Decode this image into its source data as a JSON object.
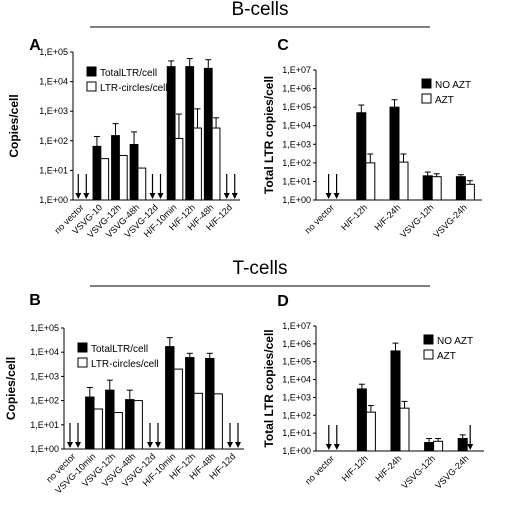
{
  "section_titles": {
    "top": "B-cells",
    "bottom": "T-cells"
  },
  "chart_data": [
    {
      "panel": "A",
      "type": "bar",
      "ylabel": "Copies/cell",
      "yscale": "log",
      "ylim": [
        1,
        100000
      ],
      "yticks": [
        "1,E+00",
        "1,E+01",
        "1,E+02",
        "1,E+03",
        "1,E+04",
        "1,E+05"
      ],
      "legend_position": "top-left",
      "categories": [
        "no vector",
        "VSVG-10",
        "VSVG-12h",
        "VSVG-48h",
        "VSVG-12d",
        "H/F-10min",
        "H/F-12h",
        "H/F-48h",
        "H/F-12d"
      ],
      "series": [
        {
          "name": "TotalLTR/cell",
          "color": "#000000",
          "values": [
            null,
            65,
            150,
            75,
            null,
            32000,
            32000,
            28000,
            null
          ],
          "error_upper": [
            null,
            140,
            380,
            200,
            null,
            50000,
            60000,
            55000,
            null
          ]
        },
        {
          "name": "LTR-circles/cell",
          "color": "#ffffff",
          "values": [
            null,
            25,
            32,
            12,
            null,
            120,
            270,
            270,
            null
          ],
          "error_upper": [
            null,
            null,
            null,
            null,
            null,
            800,
            1200,
            600,
            null
          ]
        }
      ],
      "undetectable_markers": [
        {
          "category": "no vector",
          "count": 2
        },
        {
          "category": "VSVG-12d",
          "count": 2
        },
        {
          "category": "H/F-12d",
          "count": 2
        }
      ]
    },
    {
      "panel": "C",
      "type": "bar",
      "ylabel": "Total LTR copies/cell",
      "yscale": "log",
      "ylim": [
        1,
        10000000
      ],
      "yticks": [
        "1,E+00",
        "1,E+01",
        "1,E+02",
        "1,E+03",
        "1,E+04",
        "1,E+05",
        "1,E+06",
        "1,E+07"
      ],
      "legend_position": "top-right",
      "categories": [
        "no vector",
        "H/F-12h",
        "H/F-24h",
        "VSVG-12h",
        "VSVG-24h"
      ],
      "series": [
        {
          "name": "NO AZT",
          "color": "#000000",
          "values": [
            null,
            50000,
            100000,
            20,
            18
          ],
          "error_upper": [
            null,
            130000,
            250000,
            32,
            23
          ]
        },
        {
          "name": "AZT",
          "color": "#ffffff",
          "values": [
            null,
            100,
            110,
            18,
            7
          ],
          "error_upper": [
            null,
            300,
            300,
            26,
            11
          ]
        }
      ],
      "undetectable_markers": [
        {
          "category": "no vector",
          "count": 2
        }
      ]
    },
    {
      "panel": "B",
      "type": "bar",
      "ylabel": "Copies/cell",
      "yscale": "log",
      "ylim": [
        1,
        100000
      ],
      "yticks": [
        "1,E+00",
        "1,E+01",
        "1,E+02",
        "1,E+03",
        "1,E+04",
        "1,E+05"
      ],
      "legend_position": "top-left",
      "categories": [
        "no vector",
        "VSVG-10min",
        "VSVG-12h",
        "VSVG-48h",
        "VSVG-12d",
        "H/F-10min",
        "H/F-12h",
        "H/F-48h",
        "H/F-12d"
      ],
      "series": [
        {
          "name": "TotalLTR/cell",
          "color": "#000000",
          "values": [
            null,
            140,
            270,
            110,
            null,
            17000,
            6000,
            5500,
            null
          ],
          "error_upper": [
            null,
            350,
            700,
            270,
            null,
            40000,
            9000,
            9000,
            null
          ]
        },
        {
          "name": "LTR-circles/cell",
          "color": "#ffffff",
          "values": [
            null,
            45,
            32,
            100,
            null,
            2000,
            200,
            190,
            null
          ],
          "error_upper": [
            null,
            null,
            null,
            null,
            null,
            null,
            null,
            null,
            null
          ]
        }
      ],
      "undetectable_markers": [
        {
          "category": "no vector",
          "count": 2
        },
        {
          "category": "VSVG-12d",
          "count": 2
        },
        {
          "category": "H/F-12d",
          "count": 2
        }
      ]
    },
    {
      "panel": "D",
      "type": "bar",
      "ylabel": "Total LTR copies/cell",
      "yscale": "log",
      "ylim": [
        1,
        10000000
      ],
      "yticks": [
        "1,E+00",
        "1,E+01",
        "1,E+02",
        "1,E+03",
        "1,E+04",
        "1,E+05",
        "1,E+06",
        "1,E+07"
      ],
      "legend_position": "top-right",
      "categories": [
        "no vector",
        "H/F-12h",
        "H/F-24h",
        "VSVG-12h",
        "VSVG-24h"
      ],
      "series": [
        {
          "name": "NO AZT",
          "color": "#000000",
          "values": [
            null,
            3000,
            400000,
            3,
            5
          ],
          "error_upper": [
            null,
            5500,
            1100000,
            5,
            8
          ]
        },
        {
          "name": "AZT",
          "color": "#ffffff",
          "values": [
            null,
            150,
            250,
            3.5,
            null
          ],
          "error_upper": [
            null,
            350,
            600,
            5,
            null
          ]
        }
      ],
      "undetectable_markers": [
        {
          "category": "no vector",
          "count": 2
        },
        {
          "category": "VSVG-24h",
          "count": 1
        }
      ]
    }
  ]
}
